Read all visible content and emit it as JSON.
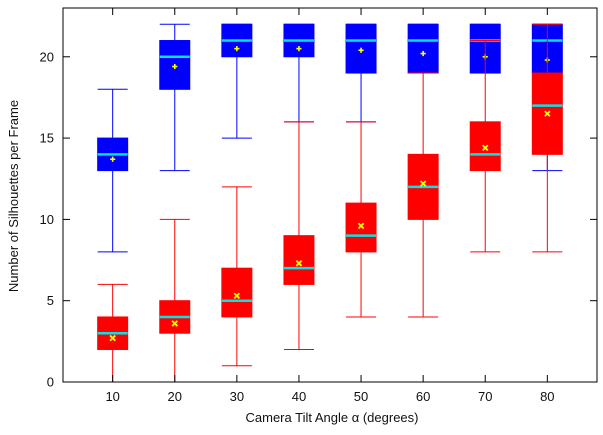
{
  "chart_data": {
    "type": "box",
    "xlabel": "Camera Tilt Angle α (degrees)",
    "ylabel": "Number of Silhouettes per Frame",
    "categories": [
      "10",
      "20",
      "30",
      "40",
      "50",
      "60",
      "70",
      "80"
    ],
    "ylim": [
      0,
      23
    ],
    "yticks": [
      0,
      5,
      10,
      15,
      20
    ],
    "grid": false,
    "legend": "none",
    "series": [
      {
        "color": "#0000ff",
        "mean_marker": "+",
        "boxes": [
          {
            "x": "10",
            "min": 8,
            "q1": 13,
            "median": 14,
            "q3": 15,
            "max": 18,
            "mean": 13.7
          },
          {
            "x": "20",
            "min": 13,
            "q1": 18,
            "median": 20,
            "q3": 21,
            "max": 22,
            "mean": 19.4
          },
          {
            "x": "30",
            "min": 15,
            "q1": 20,
            "median": 21,
            "q3": 22,
            "max": 22,
            "mean": 20.5
          },
          {
            "x": "40",
            "min": 16,
            "q1": 20,
            "median": 21,
            "q3": 22,
            "max": 22,
            "mean": 20.5
          },
          {
            "x": "50",
            "min": 16,
            "q1": 19,
            "median": 21,
            "q3": 22,
            "max": 22,
            "mean": 20.4
          },
          {
            "x": "60",
            "min": 19,
            "q1": 19,
            "median": 21,
            "q3": 22,
            "max": 22,
            "mean": 20.2
          },
          {
            "x": "70",
            "min": 19,
            "q1": 19,
            "median": 21,
            "q3": 22,
            "max": 22,
            "mean": 20.0
          },
          {
            "x": "80",
            "min": 13,
            "q1": 19,
            "median": 21,
            "q3": 22,
            "max": 22,
            "mean": 19.8
          }
        ]
      },
      {
        "color": "#ff0000",
        "mean_marker": "x",
        "boxes": [
          {
            "x": "10",
            "min": 0,
            "q1": 2,
            "median": 3,
            "q3": 4,
            "max": 6,
            "mean": 2.7
          },
          {
            "x": "20",
            "min": 0,
            "q1": 3,
            "median": 4,
            "q3": 5,
            "max": 10,
            "mean": 3.6
          },
          {
            "x": "30",
            "min": 1,
            "q1": 4,
            "median": 5,
            "q3": 7,
            "max": 12,
            "mean": 5.3
          },
          {
            "x": "40",
            "min": 2,
            "q1": 6,
            "median": 7,
            "q3": 9,
            "max": 16,
            "mean": 7.3
          },
          {
            "x": "50",
            "min": 4,
            "q1": 8,
            "median": 9,
            "q3": 11,
            "max": 16,
            "mean": 9.6
          },
          {
            "x": "60",
            "min": 4,
            "q1": 10,
            "median": 12,
            "q3": 14,
            "max": 19,
            "mean": 12.2
          },
          {
            "x": "70",
            "min": 8,
            "q1": 13,
            "median": 14,
            "q3": 16,
            "max": 21,
            "mean": 14.4
          },
          {
            "x": "80",
            "min": 8,
            "q1": 14,
            "median": 17,
            "q3": 19,
            "max": 22,
            "mean": 16.5
          }
        ]
      }
    ],
    "median_color": "#00e5e5",
    "mean_color": "#ffff00"
  }
}
